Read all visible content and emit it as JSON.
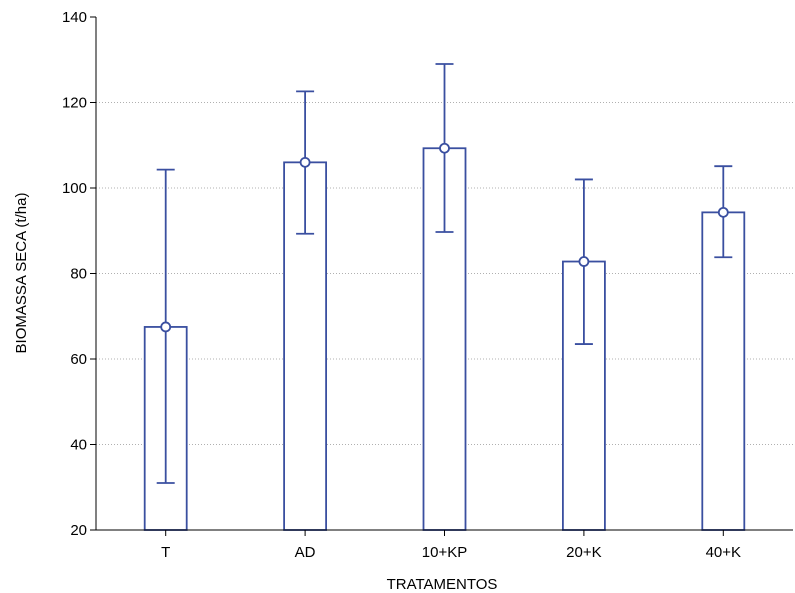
{
  "chart_data": {
    "type": "bar",
    "title": "",
    "xlabel": "TRATAMENTOS",
    "ylabel": "BIOMASSA SECA (t/ha)",
    "ylim": [
      20,
      140
    ],
    "yticks": [
      20,
      40,
      60,
      80,
      100,
      120,
      140
    ],
    "grid": "horizontal dotted",
    "categories": [
      "T",
      "AD",
      "10+KP",
      "20+K",
      "40+K"
    ],
    "values": [
      67.5,
      106.0,
      109.3,
      82.8,
      94.3
    ],
    "error_low": [
      31.0,
      89.3,
      89.7,
      63.5,
      83.8
    ],
    "error_high": [
      104.3,
      122.6,
      129.0,
      102.0,
      105.1
    ],
    "colors": {
      "series": "#3a4fa0",
      "fill": "#ffffff",
      "grid": "#b0b0b0"
    }
  }
}
